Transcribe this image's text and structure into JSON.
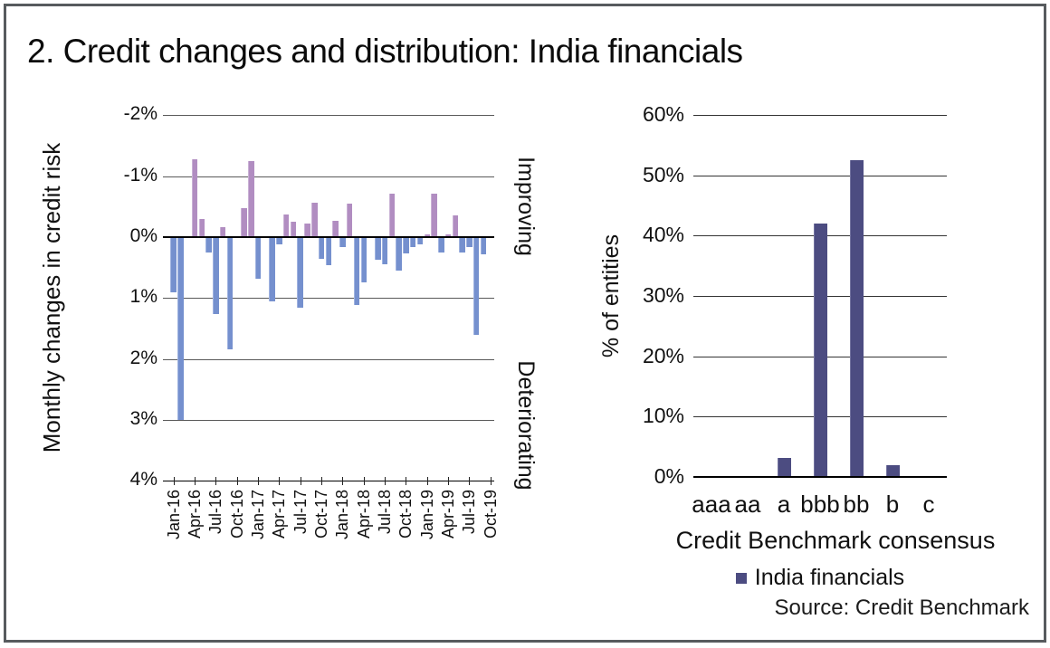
{
  "panel": {
    "title": "2. Credit changes and distribution: India financials",
    "source": "Source: Credit Benchmark",
    "border_color": "#575b5e"
  },
  "colors": {
    "improving_purple": "#b18dc1",
    "improving_purple_edge": "#c9b1d5",
    "deteriorating_blue": "#7590ce",
    "deteriorating_blue_edge": "#a0b3e0",
    "distribution_indigo": "#4c4c81",
    "distribution_indigo_edge": "#73739f",
    "gridline": "#595959",
    "axis": "#000000"
  },
  "chart_data": [
    {
      "type": "bar",
      "ylabel": "Monthly changes in credit risk",
      "right_labels": [
        "Improving",
        "Deteriorating"
      ],
      "y_axis_inverted": true,
      "ylim": [
        -2,
        4
      ],
      "yticks": [
        "-2%",
        "-1%",
        "0%",
        "1%",
        "2%",
        "3%",
        "4%"
      ],
      "sign_convention": "positive = deteriorating (drawn downward, blue); negative = improving (drawn upward, purple)",
      "months": [
        "Jan-16",
        "Feb-16",
        "Mar-16",
        "Apr-16",
        "May-16",
        "Jun-16",
        "Jul-16",
        "Aug-16",
        "Sep-16",
        "Oct-16",
        "Nov-16",
        "Dec-16",
        "Jan-17",
        "Feb-17",
        "Mar-17",
        "Apr-17",
        "May-17",
        "Jun-17",
        "Jul-17",
        "Aug-17",
        "Sep-17",
        "Oct-17",
        "Nov-17",
        "Dec-17",
        "Jan-18",
        "Feb-18",
        "Mar-18",
        "Apr-18",
        "May-18",
        "Jun-18",
        "Jul-18",
        "Aug-18",
        "Sep-18",
        "Oct-18",
        "Nov-18",
        "Dec-18",
        "Jan-19",
        "Feb-19",
        "Mar-19",
        "Apr-19",
        "May-19",
        "Jun-19",
        "Jul-19",
        "Aug-19",
        "Sep-19",
        "Oct-19"
      ],
      "values": [
        0.9,
        3.0,
        0,
        -1.28,
        -0.29,
        0.26,
        1.27,
        -0.16,
        1.84,
        0,
        -0.47,
        -1.25,
        0.68,
        0,
        1.05,
        0.12,
        -0.37,
        -0.26,
        1.16,
        -0.23,
        -0.56,
        0.35,
        0.46,
        -0.27,
        0.17,
        -0.55,
        1.12,
        0.74,
        0,
        0.37,
        0.45,
        -0.72,
        0.55,
        0.27,
        0.17,
        0.12,
        -0.05,
        -0.71,
        0.26,
        -0.05,
        -0.35,
        0.26,
        0.16,
        1.6,
        0.28,
        0
      ],
      "xtick_labels": [
        "Jan-16",
        "Apr-16",
        "Jul-16",
        "Oct-16",
        "Jan-17",
        "Apr-17",
        "Jul-17",
        "Oct-17",
        "Jan-18",
        "Apr-18",
        "Jul-18",
        "Oct-18",
        "Jan-19",
        "Apr-19",
        "Jul-19",
        "Oct-19"
      ]
    },
    {
      "type": "bar",
      "categories": [
        "aaa",
        "aa",
        "a",
        "bbb",
        "bb",
        "b",
        "c"
      ],
      "values": [
        0,
        0,
        3.1,
        42,
        52.5,
        2,
        0
      ],
      "ylabel": "% of entities",
      "xlabel": "Credit Benchmark consensus",
      "legend": [
        "India financials"
      ],
      "ylim": [
        0,
        60
      ],
      "yticks": [
        "0%",
        "10%",
        "20%",
        "30%",
        "40%",
        "50%",
        "60%"
      ]
    }
  ]
}
